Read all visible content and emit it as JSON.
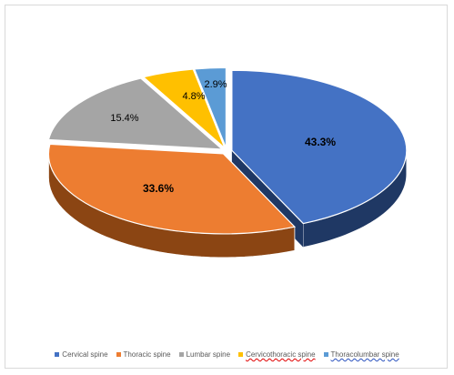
{
  "chart_data": {
    "type": "pie",
    "title": "",
    "style": "3d-exploded",
    "legend_position": "bottom",
    "slices": [
      {
        "name": "Cervical spine",
        "value": 43.3,
        "label": "43.3%",
        "color": "#4472c4",
        "side_color": "#1f3864",
        "label_bold": true,
        "spell_mark": ""
      },
      {
        "name": "Thoracic spine",
        "value": 33.6,
        "label": "33.6%",
        "color": "#ed7d31",
        "side_color": "#8b4513",
        "label_bold": true,
        "spell_mark": ""
      },
      {
        "name": "Lumbar spine",
        "value": 15.4,
        "label": "15.4%",
        "color": "#a5a5a5",
        "side_color": "#5f5f5f",
        "label_bold": false,
        "spell_mark": ""
      },
      {
        "name": "Cervicothoracic spine",
        "value": 4.8,
        "label": "4.8%",
        "color": "#ffc000",
        "side_color": "#9c7600",
        "label_bold": false,
        "spell_mark": "red"
      },
      {
        "name": "Thoracolumbar spine",
        "value": 2.9,
        "label": "2.9%",
        "color": "#5b9bd5",
        "side_color": "#2e5f8a",
        "label_bold": false,
        "spell_mark": "blue"
      }
    ]
  }
}
